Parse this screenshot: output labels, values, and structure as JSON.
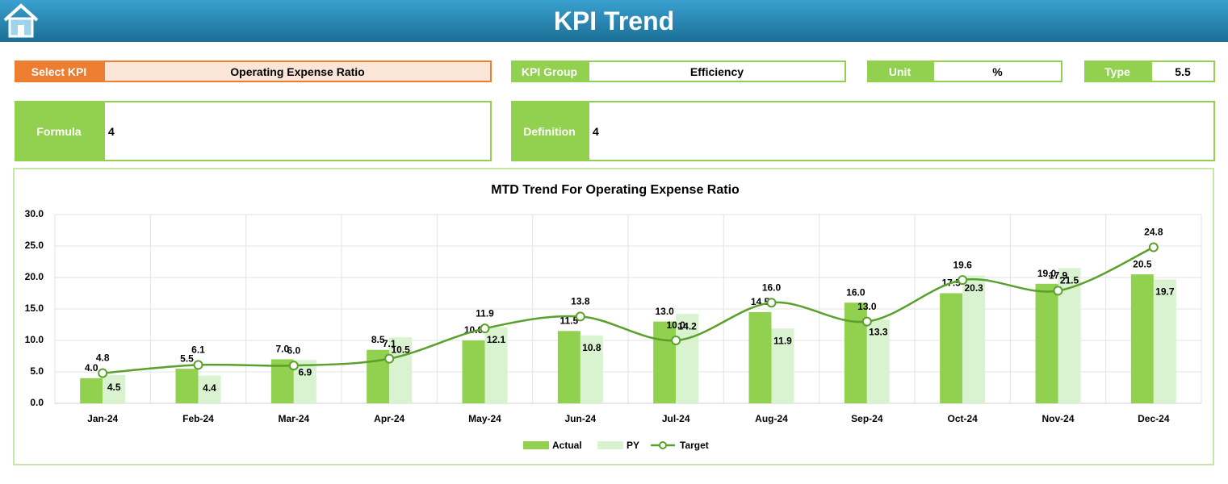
{
  "header": {
    "title": "KPI Trend"
  },
  "fields": {
    "select_kpi": {
      "label": "Select KPI",
      "value": "Operating Expense Ratio"
    },
    "kpi_group": {
      "label": "KPI Group",
      "value": "Efficiency"
    },
    "unit": {
      "label": "Unit",
      "value": "%"
    },
    "type": {
      "label": "Type",
      "value": "5.5"
    },
    "formula": {
      "label": "Formula",
      "value": "4"
    },
    "definition": {
      "label": "Definition",
      "value": "4"
    }
  },
  "chart_data": {
    "type": "bar-line",
    "title": "MTD Trend For Operating Expense Ratio",
    "categories": [
      "Jan-24",
      "Feb-24",
      "Mar-24",
      "Apr-24",
      "May-24",
      "Jun-24",
      "Jul-24",
      "Aug-24",
      "Sep-24",
      "Oct-24",
      "Nov-24",
      "Dec-24"
    ],
    "series": [
      {
        "name": "Actual",
        "type": "bar",
        "color": "#92d050",
        "values": [
          4.0,
          5.5,
          7.0,
          8.5,
          10.0,
          11.5,
          13.0,
          14.5,
          16.0,
          17.5,
          19.0,
          20.5
        ],
        "value_labels": [
          "4.0",
          "5.5",
          "7.0",
          "8.5",
          "10.0",
          "11.5",
          "13.0",
          "14.5",
          "16.0",
          "17.5",
          "19.0",
          "20.5"
        ]
      },
      {
        "name": "PY",
        "type": "bar",
        "color": "#d9f2d0",
        "values": [
          4.5,
          4.4,
          6.9,
          10.5,
          12.1,
          10.8,
          14.2,
          11.9,
          13.3,
          20.3,
          21.5,
          19.7
        ],
        "value_labels": [
          "4.5",
          "4.4",
          "6.9",
          "10.5",
          "12.1",
          "10.8",
          "14.2",
          "11.9",
          "13.3",
          "20.3",
          "21.5",
          "19.7"
        ]
      },
      {
        "name": "Target",
        "type": "line",
        "color": "#5aa02c",
        "values": [
          4.8,
          6.1,
          6.0,
          7.1,
          11.9,
          13.8,
          10.0,
          16.0,
          13.0,
          19.6,
          17.9,
          24.8
        ],
        "value_labels": [
          "4.8",
          "6.1",
          "6.0",
          "7.1",
          "11.9",
          "13.8",
          "10.0",
          "16.0",
          "13.0",
          "19.6",
          "17.9",
          "24.8"
        ]
      }
    ],
    "ylim": [
      0,
      30
    ],
    "yticks": [
      {
        "value": 0,
        "label": "0.0"
      },
      {
        "value": 5,
        "label": "5.0"
      },
      {
        "value": 10,
        "label": "10.0"
      },
      {
        "value": 15,
        "label": "15.0"
      },
      {
        "value": 20,
        "label": "20.0"
      },
      {
        "value": 25,
        "label": "25.0"
      },
      {
        "value": 30,
        "label": "30.0"
      }
    ],
    "grid": true,
    "legend": "bottom"
  }
}
